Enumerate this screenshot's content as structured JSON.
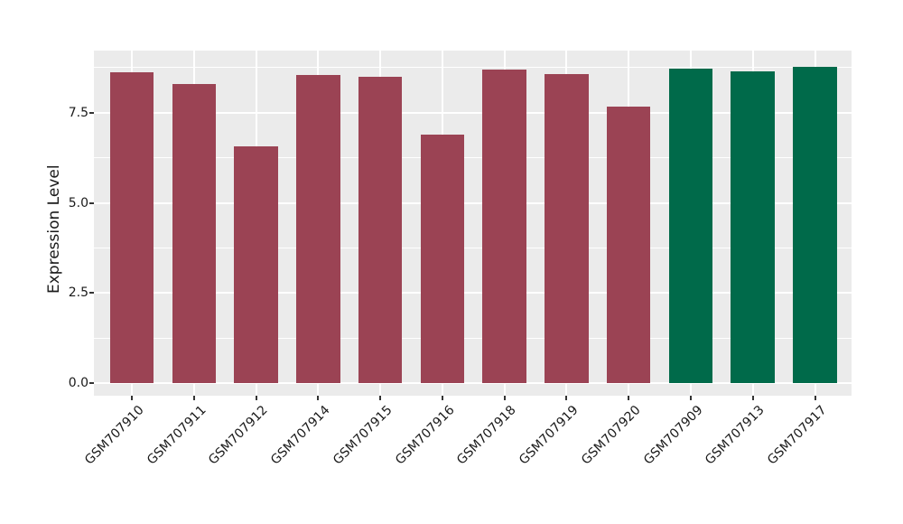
{
  "chart_data": {
    "type": "bar",
    "title": "",
    "xlabel": "",
    "ylabel": "Expression Level",
    "categories": [
      "GSM707910",
      "GSM707911",
      "GSM707912",
      "GSM707914",
      "GSM707915",
      "GSM707916",
      "GSM707918",
      "GSM707919",
      "GSM707920",
      "GSM707909",
      "GSM707913",
      "GSM707917"
    ],
    "values": [
      8.61,
      8.3,
      6.57,
      8.55,
      8.5,
      6.88,
      8.7,
      8.58,
      7.66,
      8.73,
      8.65,
      8.78
    ],
    "bar_colors": [
      "#9B4354",
      "#9B4354",
      "#9B4354",
      "#9B4354",
      "#9B4354",
      "#9B4354",
      "#9B4354",
      "#9B4354",
      "#9B4354",
      "#006A4A",
      "#006A4A",
      "#006A4A"
    ],
    "group_colors": {
      "maroon": "#9B4354",
      "green": "#006A4A"
    },
    "yticks": [
      {
        "label": "0.0",
        "value": 0
      },
      {
        "label": "2.5",
        "value": 2.5
      },
      {
        "label": "5.0",
        "value": 5
      },
      {
        "label": "7.5",
        "value": 7.5
      }
    ],
    "minor_yticks": [
      1.25,
      3.75,
      6.25,
      8.75
    ],
    "ylim": [
      -0.35,
      9.22
    ],
    "legend_position": "none",
    "grid": true,
    "panel_bg": "#EBEBEB",
    "grid_color": "#FFFFFF",
    "text_color": "#1A1A1A",
    "tick_color": "#333333"
  }
}
